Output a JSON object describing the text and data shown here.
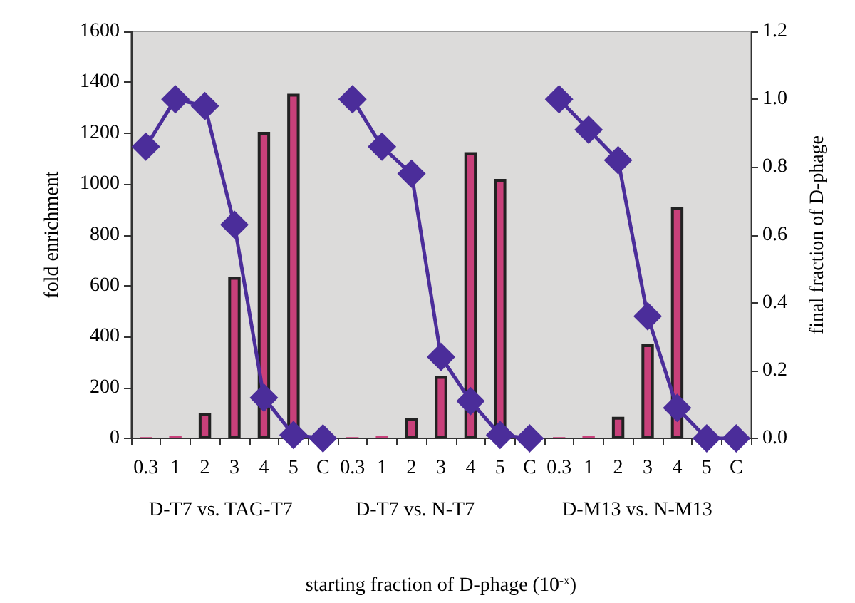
{
  "chart_data": {
    "type": "bar",
    "xlabel": "starting fraction of D-phage (10$^{-x}$)",
    "ylabel": "fold enrichment",
    "y2label": "final fraction of D-phage",
    "categories": [
      "0.3",
      "1",
      "2",
      "3",
      "4",
      "5",
      "C",
      "0.3",
      "1",
      "2",
      "3",
      "4",
      "5",
      "C",
      "0.3",
      "1",
      "2",
      "3",
      "4",
      "5",
      "C"
    ],
    "series": [
      {
        "color": "#c8407a",
        "values": [
          5,
          10,
          100,
          635,
          1205,
          1355,
          null,
          5,
          10,
          80,
          245,
          1125,
          1020,
          null,
          5,
          10,
          85,
          370,
          910,
          null,
          null
        ]
      },
      {
        "type": "line",
        "axis": "y2",
        "color": "#4b2d9a",
        "values": [
          0.86,
          1.0,
          0.98,
          0.63,
          0.12,
          0.01,
          0.0,
          null,
          null,
          null,
          null,
          null,
          null,
          null,
          null,
          null,
          null,
          null,
          null,
          null,
          null
        ]
      },
      {
        "type": "line",
        "axis": "y2",
        "color": "#4b2d9a",
        "values": [
          null,
          null,
          null,
          null,
          null,
          null,
          null,
          1.0,
          0.86,
          0.78,
          0.24,
          0.11,
          0.01,
          0.0,
          null,
          null,
          null,
          null,
          null,
          null,
          null
        ]
      },
      {
        "type": "line",
        "axis": "y2",
        "color": "#4b2d9a",
        "values": [
          null,
          null,
          null,
          null,
          null,
          null,
          null,
          null,
          null,
          null,
          null,
          null,
          null,
          null,
          1.0,
          0.91,
          0.82,
          0.36,
          0.09,
          0.0,
          0.0
        ]
      }
    ],
    "annotations": [
      "D-T7 vs. TAG-T7",
      "D-T7 vs. N-T7",
      "D-M13 vs. N-M13"
    ],
    "ylim": [
      0,
      1600
    ],
    "yticks": [
      0,
      200,
      400,
      600,
      800,
      1000,
      1200,
      1400,
      1600
    ],
    "y2lim": [
      0,
      1.2
    ],
    "y2ticks": [
      {
        "value": 0,
        "label": "0.0"
      },
      {
        "value": 0.2,
        "label": "0.2"
      },
      {
        "value": 0.4,
        "label": "0.4"
      },
      {
        "value": 0.6,
        "label": "0.6"
      },
      {
        "value": 0.8,
        "label": "0.8"
      },
      {
        "value": 1,
        "label": "1.0"
      },
      {
        "value": 1.2,
        "label": "1.2"
      }
    ],
    "grid": false,
    "marker": "diamond"
  }
}
